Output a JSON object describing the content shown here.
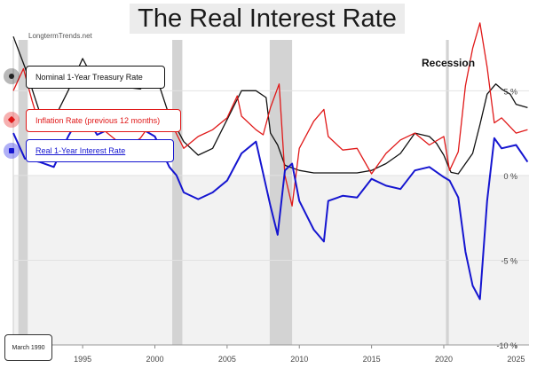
{
  "title": "The Real Interest Rate",
  "brand": "LongtermTrends.net",
  "recession_label": "Recession",
  "cursor_date": "March 1990",
  "legend": {
    "nominal": "Nominal 1-Year Treasury Rate",
    "inflation": "Inflation Rate (previous 12 months)",
    "real": "Real 1-Year Interest Rate"
  },
  "colors": {
    "nominal": "#111111",
    "inflation": "#e01818",
    "real": "#1515d0",
    "recession": "#d3d3d3",
    "grid": "#e2e2e2",
    "negative_band": "#f2f2f2"
  },
  "chart_data": {
    "type": "line",
    "title": "The Real Interest Rate",
    "xlabel": "",
    "ylabel": "",
    "xlim": [
      1990.2,
      2025.9
    ],
    "ylim": [
      -10,
      8
    ],
    "x_ticks": [
      1995,
      2000,
      2005,
      2010,
      2015,
      2020,
      2025
    ],
    "x_tick_labels": [
      "1995",
      "2000",
      "2005",
      "2010",
      "2015",
      "2020",
      "2025"
    ],
    "y_ticks": [
      5,
      0,
      -5,
      -10
    ],
    "y_tick_labels": [
      "5 %",
      "0 %",
      "-5 %",
      "-10 %"
    ],
    "recessions": [
      [
        1990.55,
        1991.2
      ],
      [
        2001.2,
        2001.9
      ],
      [
        2007.95,
        2009.5
      ],
      [
        2020.15,
        2020.35
      ]
    ],
    "series": [
      {
        "name": "Nominal 1-Year Treasury Rate",
        "x": [
          1990.2,
          1991,
          1992,
          1993,
          1994,
          1995,
          1996,
          1997,
          1998,
          1999,
          2000,
          2001,
          2001.5,
          2002,
          2003,
          2004,
          2005,
          2006,
          2007,
          2007.7,
          2008,
          2008.5,
          2009,
          2010,
          2011,
          2012,
          2013,
          2014,
          2015,
          2016,
          2017,
          2018,
          2019,
          2019.5,
          2020,
          2020.5,
          2021,
          2022,
          2022.5,
          2023,
          2023.6,
          2024,
          2024.6,
          2025,
          2025.8
        ],
        "y": [
          8.2,
          6.4,
          3.8,
          3.3,
          5.0,
          6.9,
          5.3,
          5.5,
          5.2,
          5.1,
          6.1,
          3.5,
          2.8,
          2.0,
          1.2,
          1.6,
          3.3,
          5.0,
          5.0,
          4.6,
          2.5,
          1.8,
          0.6,
          0.3,
          0.15,
          0.15,
          0.15,
          0.15,
          0.3,
          0.7,
          1.3,
          2.5,
          2.3,
          1.9,
          1.2,
          0.18,
          0.1,
          1.3,
          3.0,
          4.8,
          5.4,
          5.1,
          4.8,
          4.2,
          4.0
        ]
      },
      {
        "name": "Inflation Rate (previous 12 months)",
        "x": [
          1990.2,
          1990.9,
          1991.5,
          1992,
          1993,
          1994,
          1995,
          1996,
          1997,
          1998,
          1999,
          2000,
          2000.5,
          2001,
          2002,
          2003,
          2004,
          2005,
          2005.7,
          2006,
          2007,
          2007.5,
          2008,
          2008.6,
          2009,
          2009.5,
          2010,
          2011,
          2011.7,
          2012,
          2013,
          2014,
          2015,
          2016,
          2017,
          2018,
          2019,
          2020,
          2020.4,
          2021,
          2021.5,
          2022,
          2022.5,
          2023,
          2023.5,
          2024,
          2025,
          2025.8
        ],
        "y": [
          5.0,
          6.3,
          4.4,
          3.0,
          3.0,
          2.6,
          2.8,
          3.0,
          2.3,
          1.6,
          2.2,
          3.4,
          3.7,
          3.3,
          1.6,
          2.3,
          2.7,
          3.4,
          4.7,
          3.5,
          2.7,
          2.4,
          4.0,
          5.4,
          0.0,
          -1.8,
          1.6,
          3.2,
          3.9,
          2.3,
          1.5,
          1.6,
          0.1,
          1.3,
          2.1,
          2.5,
          1.8,
          2.3,
          0.3,
          1.4,
          5.3,
          7.5,
          9.0,
          6.4,
          3.1,
          3.4,
          2.5,
          2.7
        ]
      },
      {
        "name": "Real 1-Year Interest Rate",
        "x": [
          1990.2,
          1991,
          1992,
          1993,
          1994,
          1995,
          1996,
          1997,
          1998,
          1999,
          2000,
          2001,
          2001.5,
          2002,
          2003,
          2004,
          2005,
          2006,
          2007,
          2008,
          2008.5,
          2009,
          2009.5,
          2010,
          2011,
          2011.7,
          2012,
          2013,
          2014,
          2015,
          2016,
          2017,
          2018,
          2019,
          2020,
          2020.4,
          2021,
          2021.5,
          2022,
          2022.5,
          2023,
          2023.5,
          2024,
          2025,
          2025.8
        ],
        "y": [
          2.5,
          1.0,
          0.8,
          0.5,
          2.3,
          3.8,
          2.4,
          2.8,
          3.5,
          2.8,
          2.3,
          0.5,
          0.0,
          -1.0,
          -1.4,
          -1.0,
          -0.3,
          1.3,
          2.0,
          -1.8,
          -3.5,
          0.3,
          0.7,
          -1.5,
          -3.2,
          -3.9,
          -1.5,
          -1.2,
          -1.3,
          -0.2,
          -0.6,
          -0.8,
          0.3,
          0.5,
          -0.1,
          -0.3,
          -1.3,
          -4.5,
          -6.5,
          -7.3,
          -1.5,
          2.2,
          1.6,
          1.8,
          0.8
        ]
      }
    ]
  }
}
